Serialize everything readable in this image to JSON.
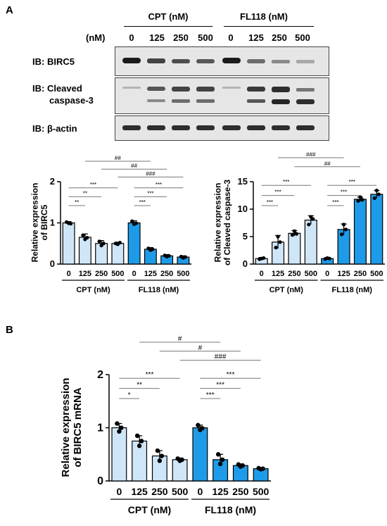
{
  "panel_a_label": "A",
  "panel_b_label": "B",
  "blot": {
    "group_cpt": "CPT (nM)",
    "group_fl118": "FL118 (nM)",
    "unit_label": "(nM)",
    "doses": [
      "0",
      "125",
      "250",
      "500",
      "0",
      "125",
      "250",
      "500"
    ],
    "ib_birc5": "IB: BIRC5",
    "ib_cleaved_1": "IB: Cleaved",
    "ib_cleaved_2": "caspase-3",
    "ib_actin": "IB: β-actin"
  },
  "colors": {
    "cpt": "#cfe6f8",
    "fl118": "#1e9be8",
    "edge": "#000000"
  },
  "chart_data": [
    {
      "type": "bar",
      "ylabel": "Relative expression of BIRC5",
      "ylim": [
        0,
        2
      ],
      "yticks": [
        0,
        1,
        2
      ],
      "categories": [
        "0",
        "125",
        "250",
        "500",
        "0",
        "125",
        "250",
        "500"
      ],
      "groups": [
        {
          "label": "CPT (nM)",
          "indices": [
            0,
            1,
            2,
            3
          ]
        },
        {
          "label": "FL118 (nM)",
          "indices": [
            4,
            5,
            6,
            7
          ]
        }
      ],
      "series": [
        {
          "values": [
            1.0,
            0.65,
            0.5,
            0.5,
            1.0,
            0.36,
            0.2,
            0.17
          ],
          "errors": [
            0.03,
            0.08,
            0.07,
            0.03,
            0.05,
            0.04,
            0.03,
            0.03
          ]
        }
      ],
      "points": [
        [
          1.02,
          0.99,
          0.98
        ],
        [
          0.7,
          0.6,
          0.64
        ],
        [
          0.55,
          0.45,
          0.5
        ],
        [
          0.5,
          0.48,
          0.52
        ],
        [
          1.04,
          0.97,
          0.99
        ],
        [
          0.38,
          0.34,
          0.36
        ],
        [
          0.21,
          0.18,
          0.2
        ],
        [
          0.18,
          0.15,
          0.17
        ]
      ],
      "brackets": [
        {
          "from": 0,
          "to": 1,
          "level": 0.35,
          "label": "**"
        },
        {
          "from": 0,
          "to": 2,
          "level": 0.28,
          "label": "**"
        },
        {
          "from": 0,
          "to": 3,
          "level": 0.21,
          "label": "***"
        },
        {
          "from": 4,
          "to": 5,
          "level": 0.35,
          "label": "***"
        },
        {
          "from": 4,
          "to": 6,
          "level": 0.28,
          "label": "***"
        },
        {
          "from": 4,
          "to": 7,
          "level": 0.21,
          "label": "***"
        },
        {
          "from": 1,
          "to": 5,
          "level": 0.14,
          "label": "##"
        },
        {
          "from": 2,
          "to": 6,
          "level": 0.07,
          "label": "##"
        },
        {
          "from": 3,
          "to": 7,
          "level": 0.0,
          "label": "###"
        }
      ]
    },
    {
      "type": "bar",
      "ylabel": "Relative expression of Cleaved caspase-3",
      "ylim": [
        0,
        15
      ],
      "yticks": [
        0,
        5,
        10,
        15
      ],
      "categories": [
        "0",
        "125",
        "250",
        "500",
        "0",
        "125",
        "250",
        "500"
      ],
      "groups": [
        {
          "label": "CPT (nM)",
          "indices": [
            0,
            1,
            2,
            3
          ]
        },
        {
          "label": "FL118 (nM)",
          "indices": [
            4,
            5,
            6,
            7
          ]
        }
      ],
      "series": [
        {
          "values": [
            1.0,
            4.0,
            5.6,
            8.0,
            1.0,
            6.3,
            11.8,
            12.7
          ],
          "errors": [
            0.2,
            1.2,
            0.5,
            0.8,
            0.2,
            1.0,
            0.4,
            0.7
          ]
        }
      ],
      "points": [
        [
          0.9,
          1.0,
          1.1
        ],
        [
          3.0,
          5.0,
          4.0
        ],
        [
          5.3,
          6.0,
          5.5
        ],
        [
          7.2,
          8.6,
          8.2
        ],
        [
          0.9,
          1.1,
          1.0
        ],
        [
          5.4,
          7.2,
          6.3
        ],
        [
          11.5,
          12.2,
          11.7
        ],
        [
          12.0,
          13.4,
          12.7
        ]
      ],
      "brackets": [
        {
          "from": 0,
          "to": 1,
          "level": 0.35,
          "label": "***"
        },
        {
          "from": 0,
          "to": 2,
          "level": 0.28,
          "label": "***"
        },
        {
          "from": 0,
          "to": 3,
          "level": 0.21,
          "label": "***"
        },
        {
          "from": 4,
          "to": 5,
          "level": 0.35,
          "label": "***"
        },
        {
          "from": 4,
          "to": 6,
          "level": 0.28,
          "label": "***"
        },
        {
          "from": 4,
          "to": 7,
          "level": 0.21,
          "label": "***"
        },
        {
          "from": 1,
          "to": 5,
          "level": 0.14,
          "label": "###"
        },
        {
          "from": 2,
          "to": 6,
          "level": 0.07,
          "label": "##"
        }
      ]
    },
    {
      "type": "bar",
      "ylabel": "Relative expression of BIRC5 mRNA",
      "ylabel_italic": "BIRC5",
      "ylim": [
        0,
        2
      ],
      "yticks": [
        0,
        1,
        2
      ],
      "categories": [
        "0",
        "125",
        "250",
        "500",
        "0",
        "125",
        "250",
        "500"
      ],
      "groups": [
        {
          "label": "CPT (nM)",
          "indices": [
            0,
            1,
            2,
            3
          ]
        },
        {
          "label": "FL118 (nM)",
          "indices": [
            4,
            5,
            6,
            7
          ]
        }
      ],
      "series": [
        {
          "values": [
            1.0,
            0.75,
            0.47,
            0.4,
            1.0,
            0.4,
            0.29,
            0.23
          ],
          "errors": [
            0.08,
            0.1,
            0.1,
            0.03,
            0.05,
            0.1,
            0.03,
            0.02
          ]
        }
      ],
      "points": [
        [
          1.08,
          0.93,
          1.0
        ],
        [
          0.85,
          0.66,
          0.75
        ],
        [
          0.57,
          0.38,
          0.47
        ],
        [
          0.42,
          0.38,
          0.4
        ],
        [
          1.05,
          0.96,
          0.99
        ],
        [
          0.5,
          0.32,
          0.4
        ],
        [
          0.31,
          0.27,
          0.29
        ],
        [
          0.24,
          0.22,
          0.23
        ]
      ],
      "brackets": [
        {
          "from": 0,
          "to": 1,
          "level": 0.35,
          "label": "*"
        },
        {
          "from": 0,
          "to": 2,
          "level": 0.28,
          "label": "**"
        },
        {
          "from": 0,
          "to": 3,
          "level": 0.21,
          "label": "***"
        },
        {
          "from": 4,
          "to": 5,
          "level": 0.35,
          "label": "***"
        },
        {
          "from": 4,
          "to": 6,
          "level": 0.28,
          "label": "***"
        },
        {
          "from": 4,
          "to": 7,
          "level": 0.21,
          "label": "***"
        },
        {
          "from": 1,
          "to": 5,
          "level": 0.14,
          "label": "#"
        },
        {
          "from": 2,
          "to": 6,
          "level": 0.07,
          "label": "#"
        },
        {
          "from": 3,
          "to": 7,
          "level": 0.0,
          "label": "###"
        }
      ]
    }
  ]
}
